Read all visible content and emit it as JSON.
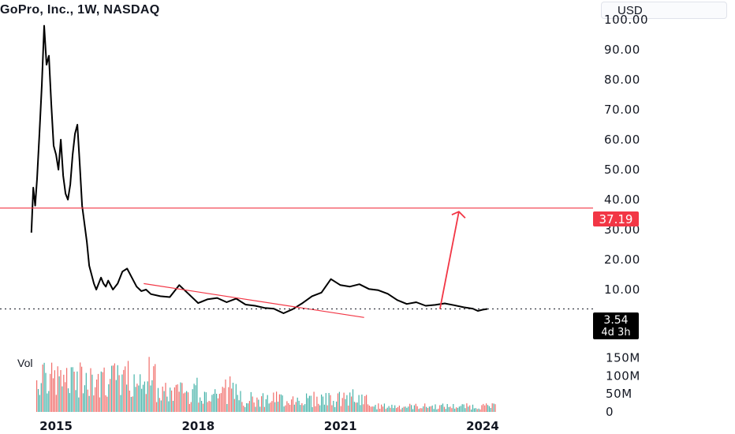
{
  "header": {
    "title": "GoPro, Inc., 1W, NASDAQ",
    "currency_button": "USD"
  },
  "price_badge": {
    "value": "3.54",
    "countdown": "4d 3h"
  },
  "level_badge": {
    "value": "37.19"
  },
  "volume_label": "Vol",
  "colors": {
    "price_line": "#000000",
    "horizontal_level": "#f23645",
    "trend_line": "#f23645",
    "arrow": "#f23645",
    "volume_up": "#26a69a",
    "volume_down": "#ef5350",
    "badge_level": "#f23645",
    "badge_price": "#000000"
  },
  "chart_data": {
    "type": "line",
    "title": "GoPro, Inc., 1W, NASDAQ",
    "xlabel": "",
    "ylabel": "",
    "x_ticks": [
      "2015",
      "2018",
      "2021",
      "2024"
    ],
    "y_ticks": [
      "100.00",
      "90.00",
      "80.00",
      "70.00",
      "60.00",
      "50.00",
      "40.00",
      "30.00",
      "20.00",
      "10.00"
    ],
    "ylim": [
      0,
      100
    ],
    "xlim": [
      2014.45,
      2024.6
    ],
    "grid": false,
    "series": [
      {
        "x": [
          2014.48,
          2014.52,
          2014.56,
          2014.6,
          2014.65,
          2014.7,
          2014.75,
          2014.8,
          2014.85,
          2014.9,
          2014.95,
          2015.0,
          2015.05,
          2015.1,
          2015.15,
          2015.2,
          2015.25,
          2015.3,
          2015.35,
          2015.4,
          2015.45,
          2015.5,
          2015.55,
          2015.6,
          2015.65,
          2015.7,
          2015.75,
          2015.8,
          2015.85,
          2015.9,
          2015.95,
          2016.0,
          2016.05,
          2016.1,
          2016.2,
          2016.3,
          2016.4,
          2016.5,
          2016.6,
          2016.7,
          2016.8,
          2016.9,
          2017.0,
          2017.2,
          2017.4,
          2017.6,
          2017.8,
          2018.0,
          2018.2,
          2018.4,
          2018.6,
          2018.8,
          2019.0,
          2019.2,
          2019.4,
          2019.6,
          2019.8,
          2020.0,
          2020.2,
          2020.4,
          2020.6,
          2020.8,
          2021.0,
          2021.2,
          2021.4,
          2021.6,
          2021.8,
          2022.0,
          2022.2,
          2022.4,
          2022.6,
          2022.8,
          2023.0,
          2023.2,
          2023.4,
          2023.6,
          2023.8,
          2023.9,
          2024.0,
          2024.1
        ],
        "y": [
          29,
          44,
          38,
          47,
          62,
          78,
          98,
          85,
          88,
          72,
          58,
          55,
          50,
          60,
          48,
          42,
          40,
          45,
          55,
          62,
          65,
          52,
          38,
          32,
          26,
          18,
          15,
          12,
          10,
          12,
          14,
          12,
          11,
          13,
          10,
          12,
          16,
          17,
          14,
          11,
          9.5,
          10,
          8.5,
          7.8,
          7.5,
          11.5,
          8.5,
          5.5,
          6.8,
          7.2,
          5.8,
          7.0,
          5.0,
          4.6,
          3.9,
          3.6,
          2.1,
          3.5,
          5.5,
          7.8,
          9.0,
          13.5,
          11.5,
          11.0,
          11.8,
          10.2,
          9.8,
          8.6,
          6.5,
          5.2,
          5.8,
          4.6,
          4.9,
          5.4,
          4.8,
          4.1,
          3.6,
          2.9,
          3.3,
          3.54
        ]
      }
    ],
    "annotations": [
      {
        "type": "horizontal_level",
        "value": 37.19
      },
      {
        "type": "trend_line",
        "x": [
          2016.85,
          2021.5
        ],
        "y": [
          12.0,
          0.7
        ]
      },
      {
        "type": "arrow",
        "x": [
          2023.1,
          2023.5
        ],
        "y": [
          3.5,
          36.0
        ]
      }
    ],
    "volume": {
      "label": "Vol",
      "ticks": [
        "150M",
        "100M",
        "50M",
        "0"
      ],
      "ylim": [
        0,
        170
      ]
    }
  }
}
